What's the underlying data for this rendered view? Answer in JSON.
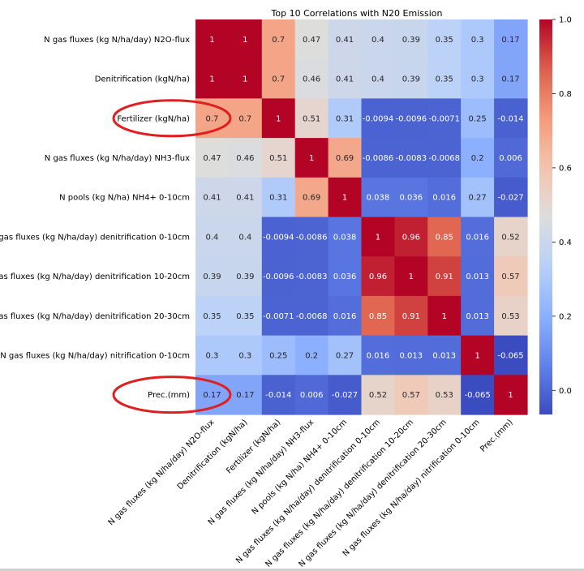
{
  "chart_data": {
    "type": "heatmap",
    "title": "Top 10 Correlations with N20 Emission",
    "labels": [
      "N gas fluxes (kg N/ha/day) N2O-flux",
      "Denitrification (kgN/ha)",
      "Fertilizer (kgN/ha)",
      "N gas fluxes (kg N/ha/day) NH3-flux",
      "N pools (kg N/ha) NH4+ 0-10cm",
      "N gas fluxes (kg N/ha/day) denitrification 0-10cm",
      "N gas fluxes (kg N/ha/day) denitrification 10-20cm",
      "N gas fluxes (kg N/ha/day) denitrification 20-30cm",
      "N gas fluxes (kg N/ha/day) nitrification 0-10cm",
      "Prec.(mm)"
    ],
    "values": [
      [
        1,
        1,
        0.7,
        0.47,
        0.41,
        0.4,
        0.39,
        0.35,
        0.3,
        0.17
      ],
      [
        1,
        1,
        0.7,
        0.46,
        0.41,
        0.4,
        0.39,
        0.35,
        0.3,
        0.17
      ],
      [
        0.7,
        0.7,
        1,
        0.51,
        0.31,
        -0.0094,
        -0.0096,
        -0.0071,
        0.25,
        -0.014
      ],
      [
        0.47,
        0.46,
        0.51,
        1,
        0.69,
        -0.0086,
        -0.0083,
        -0.0068,
        0.2,
        0.006
      ],
      [
        0.41,
        0.41,
        0.31,
        0.69,
        1,
        0.038,
        0.036,
        0.016,
        0.27,
        -0.027
      ],
      [
        0.4,
        0.4,
        -0.0094,
        -0.0086,
        0.038,
        1,
        0.96,
        0.85,
        0.016,
        0.52
      ],
      [
        0.39,
        0.39,
        -0.0096,
        -0.0083,
        0.036,
        0.96,
        1,
        0.91,
        0.013,
        0.57
      ],
      [
        0.35,
        0.35,
        -0.0071,
        -0.0068,
        0.016,
        0.85,
        0.91,
        1,
        0.013,
        0.53
      ],
      [
        0.3,
        0.3,
        0.25,
        0.2,
        0.27,
        0.016,
        0.013,
        0.013,
        1,
        -0.065
      ],
      [
        0.17,
        0.17,
        -0.014,
        0.006,
        -0.027,
        0.52,
        0.57,
        0.53,
        -0.065,
        1
      ]
    ],
    "colormap": "coolwarm",
    "vmin": -0.065,
    "vmax": 1.0,
    "colorbar_ticks": [
      "0.0",
      "0.2",
      "0.4",
      "0.6",
      "0.8",
      "1.0"
    ],
    "highlighted_rows": [
      2,
      9
    ],
    "highlight_color": "#e02020"
  }
}
